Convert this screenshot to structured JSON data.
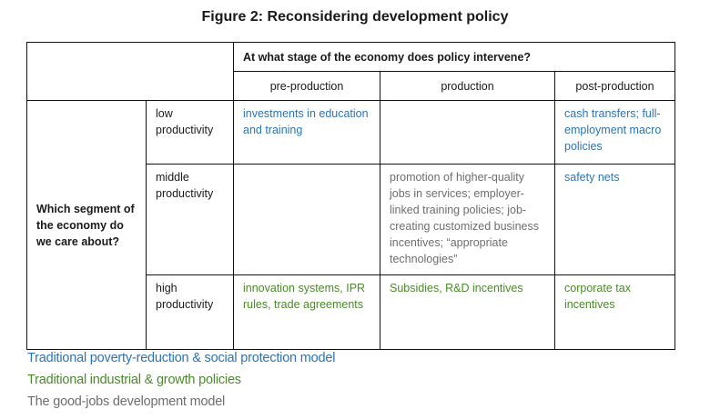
{
  "figure": {
    "title": "Figure 2: Reconsidering development policy"
  },
  "table": {
    "column_question": "At what stage of the economy does policy intervene?",
    "stages": [
      "pre-production",
      "production",
      "post-production"
    ],
    "row_question": "Which segment of the economy do we care about?",
    "rows": [
      {
        "level": "low productivity",
        "pre": "investments in education and training",
        "production": "",
        "post": "cash transfers; full-employment macro policies"
      },
      {
        "level": "middle productivity",
        "pre": "",
        "production": "promotion of higher-quality jobs in services; employer-linked training policies; job-creating customized business incentives; “appropriate technologies”",
        "post": "safety nets"
      },
      {
        "level": "high productivity",
        "pre": "innovation systems, IPR rules, trade agreements",
        "production": "Subsidies, R&D incentives",
        "post": "corporate tax incentives"
      }
    ]
  },
  "legend": [
    {
      "label": "Traditional poverty-reduction & social protection model",
      "color": "#2e74b5"
    },
    {
      "label": "Traditional industrial & growth policies",
      "color": "#4a8a2a"
    },
    {
      "label": "The good-jobs development model",
      "color": "#6e6e6e"
    }
  ]
}
